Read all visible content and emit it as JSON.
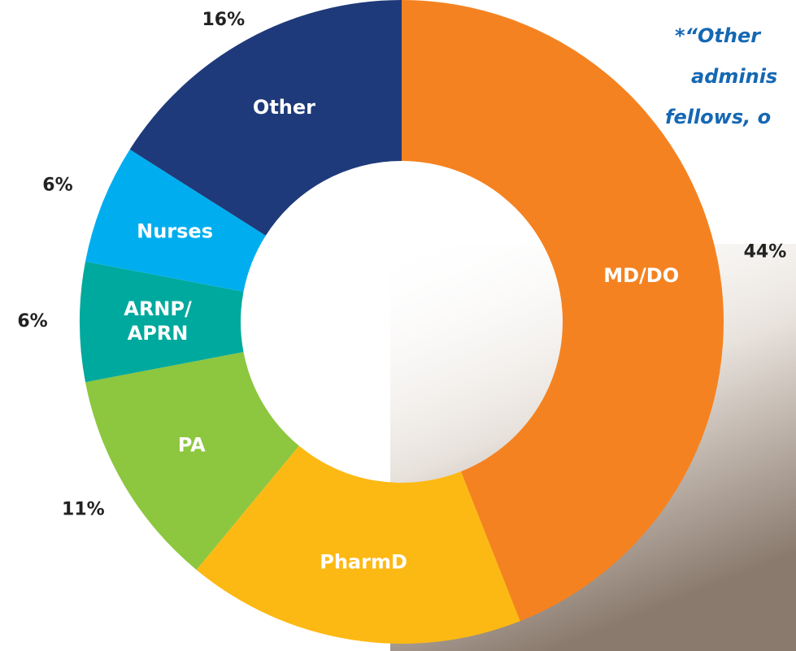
{
  "chart_data": {
    "type": "donut",
    "categories": [
      "MD/DO",
      "PharmD",
      "PA",
      "ARNP/ APRN",
      "Nurses",
      "Other"
    ],
    "values": [
      44,
      17,
      11,
      6,
      6,
      16
    ],
    "value_labels": [
      "44%",
      null,
      "11%",
      "6%",
      "6%",
      "16%"
    ],
    "colors": [
      "#f58220",
      "#fdb913",
      "#8dc63f",
      "#00a99d",
      "#00aeef",
      "#1f3a7a"
    ]
  },
  "note": {
    "lines": [
      "*“Other",
      "adminis",
      "fellows, o"
    ]
  }
}
